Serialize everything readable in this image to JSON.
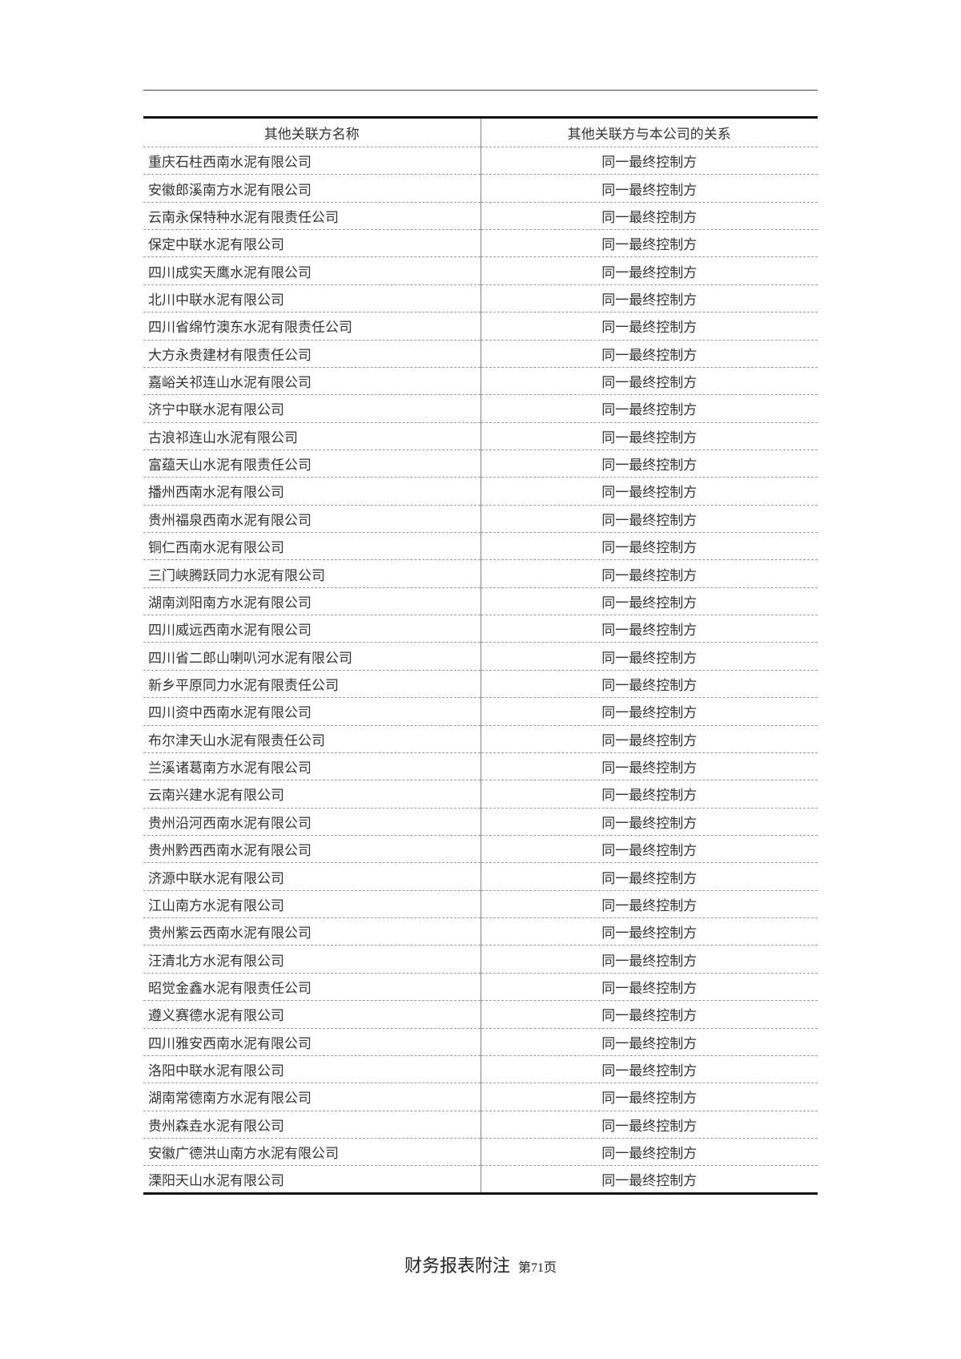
{
  "table": {
    "headers": [
      "其他关联方名称",
      "其他关联方与本公司的关系"
    ],
    "rows": [
      [
        "重庆石柱西南水泥有限公司",
        "同一最终控制方"
      ],
      [
        "安徽郎溪南方水泥有限公司",
        "同一最终控制方"
      ],
      [
        "云南永保特种水泥有限责任公司",
        "同一最终控制方"
      ],
      [
        "保定中联水泥有限公司",
        "同一最终控制方"
      ],
      [
        "四川成实天鹰水泥有限公司",
        "同一最终控制方"
      ],
      [
        "北川中联水泥有限公司",
        "同一最终控制方"
      ],
      [
        "四川省绵竹澳东水泥有限责任公司",
        "同一最终控制方"
      ],
      [
        "大方永贵建材有限责任公司",
        "同一最终控制方"
      ],
      [
        "嘉峪关祁连山水泥有限公司",
        "同一最终控制方"
      ],
      [
        "济宁中联水泥有限公司",
        "同一最终控制方"
      ],
      [
        "古浪祁连山水泥有限公司",
        "同一最终控制方"
      ],
      [
        "富蕴天山水泥有限责任公司",
        "同一最终控制方"
      ],
      [
        "播州西南水泥有限公司",
        "同一最终控制方"
      ],
      [
        "贵州福泉西南水泥有限公司",
        "同一最终控制方"
      ],
      [
        "铜仁西南水泥有限公司",
        "同一最终控制方"
      ],
      [
        "三门峡腾跃同力水泥有限公司",
        "同一最终控制方"
      ],
      [
        "湖南浏阳南方水泥有限公司",
        "同一最终控制方"
      ],
      [
        "四川威远西南水泥有限公司",
        "同一最终控制方"
      ],
      [
        "四川省二郎山喇叭河水泥有限公司",
        "同一最终控制方"
      ],
      [
        "新乡平原同力水泥有限责任公司",
        "同一最终控制方"
      ],
      [
        "四川资中西南水泥有限公司",
        "同一最终控制方"
      ],
      [
        "布尔津天山水泥有限责任公司",
        "同一最终控制方"
      ],
      [
        "兰溪诸葛南方水泥有限公司",
        "同一最终控制方"
      ],
      [
        "云南兴建水泥有限公司",
        "同一最终控制方"
      ],
      [
        "贵州沿河西南水泥有限公司",
        "同一最终控制方"
      ],
      [
        "贵州黔西西南水泥有限公司",
        "同一最终控制方"
      ],
      [
        "济源中联水泥有限公司",
        "同一最终控制方"
      ],
      [
        "江山南方水泥有限公司",
        "同一最终控制方"
      ],
      [
        "贵州紫云西南水泥有限公司",
        "同一最终控制方"
      ],
      [
        "汪清北方水泥有限公司",
        "同一最终控制方"
      ],
      [
        "昭觉金鑫水泥有限责任公司",
        "同一最终控制方"
      ],
      [
        "遵义赛德水泥有限公司",
        "同一最终控制方"
      ],
      [
        "四川雅安西南水泥有限公司",
        "同一最终控制方"
      ],
      [
        "洛阳中联水泥有限公司",
        "同一最终控制方"
      ],
      [
        "湖南常德南方水泥有限公司",
        "同一最终控制方"
      ],
      [
        "贵州森垚水泥有限公司",
        "同一最终控制方"
      ],
      [
        "安徽广德洪山南方水泥有限公司",
        "同一最终控制方"
      ],
      [
        "溧阳天山水泥有限公司",
        "同一最终控制方"
      ]
    ]
  },
  "footer": {
    "title": "财务报表附注",
    "page": "第71页"
  }
}
